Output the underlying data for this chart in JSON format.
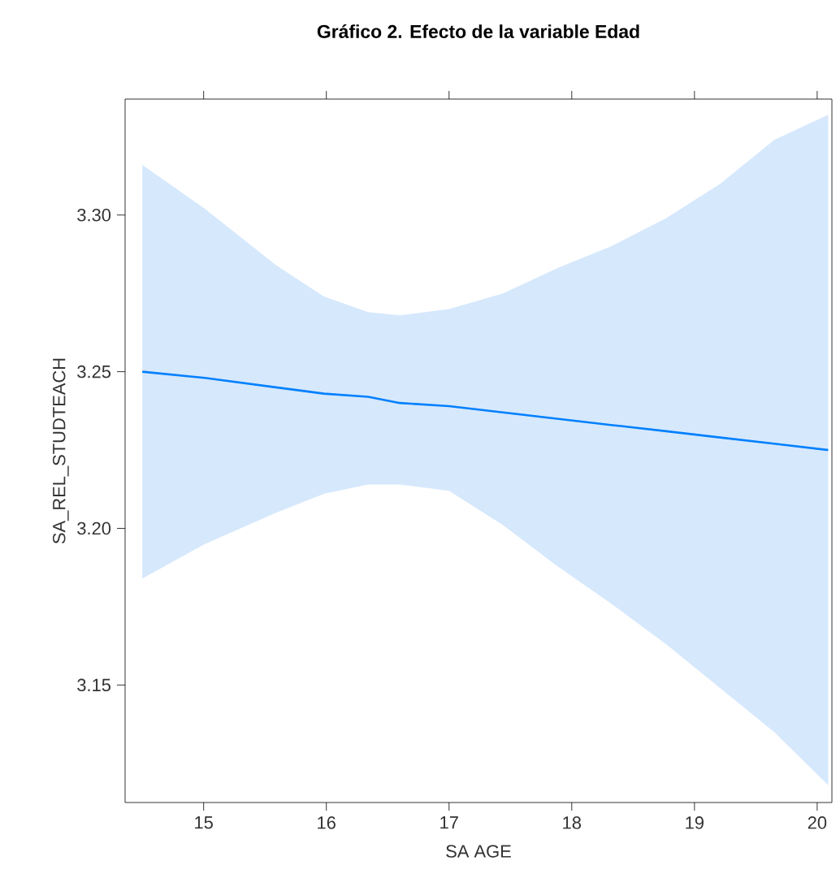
{
  "chart_data": {
    "type": "line",
    "title": "Gráfico 2. Efecto de la variable Edad",
    "xlabel": "SA  AGE",
    "ylabel": "SA_REL_STUDTEACH",
    "x": [
      14.5,
      15.01,
      15.59,
      15.98,
      16.34,
      16.6,
      17.0,
      17.44,
      17.88,
      18.32,
      18.77,
      19.21,
      19.65,
      20.09
    ],
    "series": [
      {
        "color": "#0080ff",
        "values": [
          3.25,
          3.248,
          3.245,
          3.243,
          3.242,
          3.24,
          3.239,
          3.237,
          3.235,
          3.233,
          3.231,
          3.229,
          3.227,
          3.225
        ],
        "lower": [
          3.184,
          3.195,
          3.205,
          3.211,
          3.214,
          3.214,
          3.212,
          3.201,
          3.188,
          3.176,
          3.163,
          3.149,
          3.135,
          3.118
        ],
        "upper": [
          3.316,
          3.302,
          3.284,
          3.274,
          3.269,
          3.268,
          3.27,
          3.275,
          3.283,
          3.29,
          3.299,
          3.31,
          3.324,
          3.332
        ]
      }
    ],
    "xlim": [
      14.36,
      20.12
    ],
    "ylim": [
      3.1125,
      3.337
    ],
    "xticks": [
      15,
      16,
      17,
      18,
      19,
      20
    ],
    "yticks": [
      {
        "value": 3.15,
        "label": "3.15"
      },
      {
        "value": 3.2,
        "label": "3.20"
      },
      {
        "value": 3.25,
        "label": "3.25"
      },
      {
        "value": 3.3,
        "label": "3.30"
      }
    ],
    "marker": "none",
    "line_style": "solid"
  }
}
